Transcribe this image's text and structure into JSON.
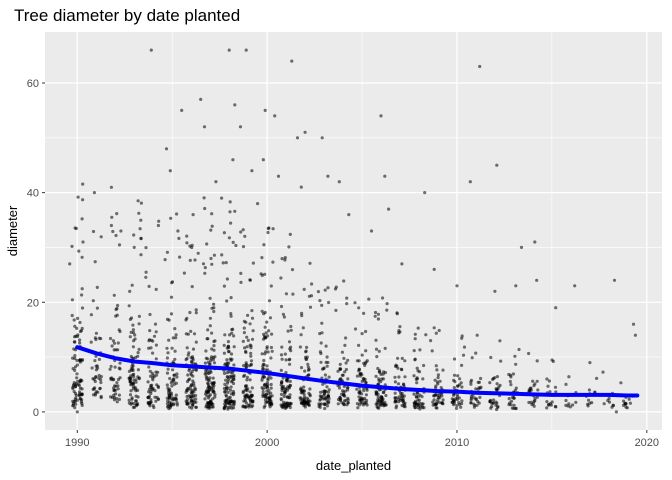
{
  "chart_data": {
    "type": "scatter",
    "title": "Tree diameter by date planted",
    "xlabel": "date_planted",
    "ylabel": "diameter",
    "xlim": [
      1988.3,
      2020.8
    ],
    "ylim": [
      -3.3,
      69.3
    ],
    "x_ticks": [
      {
        "value": 1990,
        "label": "1990"
      },
      {
        "value": 2000,
        "label": "2000"
      },
      {
        "value": 2010,
        "label": "2010"
      },
      {
        "value": 2020,
        "label": "2020"
      }
    ],
    "y_ticks": [
      {
        "value": 0,
        "label": "0"
      },
      {
        "value": 20,
        "label": "20"
      },
      {
        "value": 40,
        "label": "40"
      },
      {
        "value": 60,
        "label": "60"
      }
    ],
    "grid": true,
    "background": "#ebebeb",
    "point_color": "#000000",
    "point_opacity": 0.55,
    "smooth_color": "#0000ff",
    "year_clusters": [
      {
        "year": 1990,
        "low": 1,
        "high": 26,
        "density": 90
      },
      {
        "year": 1991,
        "low": 3,
        "high": 22,
        "density": 40
      },
      {
        "year": 1992,
        "low": 2,
        "high": 26,
        "density": 50
      },
      {
        "year": 1993,
        "low": 1,
        "high": 28,
        "density": 80
      },
      {
        "year": 1994,
        "low": 1,
        "high": 22,
        "density": 60
      },
      {
        "year": 1995,
        "low": 1,
        "high": 23,
        "density": 75
      },
      {
        "year": 1996,
        "low": 1,
        "high": 22,
        "density": 90
      },
      {
        "year": 1997,
        "low": 1,
        "high": 25,
        "density": 110
      },
      {
        "year": 1998,
        "low": 1,
        "high": 24,
        "density": 110
      },
      {
        "year": 1999,
        "low": 1,
        "high": 21,
        "density": 85
      },
      {
        "year": 2000,
        "low": 1,
        "high": 22,
        "density": 95
      },
      {
        "year": 2001,
        "low": 1,
        "high": 21,
        "density": 85
      },
      {
        "year": 2002,
        "low": 1,
        "high": 17,
        "density": 70
      },
      {
        "year": 2003,
        "low": 1,
        "high": 16,
        "density": 60
      },
      {
        "year": 2004,
        "low": 1,
        "high": 15,
        "density": 55
      },
      {
        "year": 2005,
        "low": 1,
        "high": 14,
        "density": 60
      },
      {
        "year": 2006,
        "low": 1,
        "high": 13,
        "density": 70
      },
      {
        "year": 2007,
        "low": 1,
        "high": 12,
        "density": 55
      },
      {
        "year": 2008,
        "low": 1,
        "high": 11,
        "density": 50
      },
      {
        "year": 2009,
        "low": 1,
        "high": 10,
        "density": 45
      },
      {
        "year": 2010,
        "low": 1,
        "high": 10,
        "density": 40
      },
      {
        "year": 2011,
        "low": 1,
        "high": 9,
        "density": 30
      },
      {
        "year": 2012,
        "low": 1,
        "high": 9,
        "density": 30
      },
      {
        "year": 2013,
        "low": 1,
        "high": 8,
        "density": 25
      },
      {
        "year": 2014,
        "low": 1,
        "high": 8,
        "density": 22
      },
      {
        "year": 2015,
        "low": 1,
        "high": 7,
        "density": 18
      },
      {
        "year": 2016,
        "low": 1,
        "high": 6,
        "density": 12
      },
      {
        "year": 2017,
        "low": 1,
        "high": 5,
        "density": 10
      },
      {
        "year": 2018,
        "low": 1,
        "high": 5,
        "density": 8
      },
      {
        "year": 2019,
        "low": 1,
        "high": 5,
        "density": 12
      }
    ],
    "outliers": [
      {
        "x": 1990.0,
        "y": 0
      },
      {
        "x": 1990.3,
        "y": 31
      },
      {
        "x": 1990.9,
        "y": 40
      },
      {
        "x": 1991.8,
        "y": 34
      },
      {
        "x": 1992.3,
        "y": 33
      },
      {
        "x": 1993.0,
        "y": 30
      },
      {
        "x": 1993.9,
        "y": 66
      },
      {
        "x": 1994.7,
        "y": 48
      },
      {
        "x": 1994.9,
        "y": 44
      },
      {
        "x": 1995.3,
        "y": 33
      },
      {
        "x": 1995.5,
        "y": 55
      },
      {
        "x": 1996.5,
        "y": 57
      },
      {
        "x": 1996.7,
        "y": 52
      },
      {
        "x": 1996.1,
        "y": 36
      },
      {
        "x": 1997.3,
        "y": 42
      },
      {
        "x": 1997.6,
        "y": 39
      },
      {
        "x": 1998.0,
        "y": 66
      },
      {
        "x": 1998.3,
        "y": 56
      },
      {
        "x": 1998.6,
        "y": 52
      },
      {
        "x": 1998.2,
        "y": 46
      },
      {
        "x": 1998.9,
        "y": 66
      },
      {
        "x": 1999.2,
        "y": 44
      },
      {
        "x": 1999.5,
        "y": 38
      },
      {
        "x": 1999.9,
        "y": 55
      },
      {
        "x": 1999.8,
        "y": 46
      },
      {
        "x": 2000.4,
        "y": 54
      },
      {
        "x": 2000.6,
        "y": 43
      },
      {
        "x": 2001.3,
        "y": 64
      },
      {
        "x": 2001.6,
        "y": 50
      },
      {
        "x": 2002.0,
        "y": 51
      },
      {
        "x": 2001.8,
        "y": 41
      },
      {
        "x": 2002.9,
        "y": 50
      },
      {
        "x": 2003.2,
        "y": 43
      },
      {
        "x": 2003.8,
        "y": 42
      },
      {
        "x": 2004.3,
        "y": 36
      },
      {
        "x": 2005.5,
        "y": 33
      },
      {
        "x": 2006.0,
        "y": 54
      },
      {
        "x": 2006.2,
        "y": 43
      },
      {
        "x": 2006.4,
        "y": 37
      },
      {
        "x": 2007.1,
        "y": 27
      },
      {
        "x": 2008.3,
        "y": 40
      },
      {
        "x": 2008.8,
        "y": 26
      },
      {
        "x": 2010.0,
        "y": 23
      },
      {
        "x": 2010.7,
        "y": 42
      },
      {
        "x": 2011.2,
        "y": 63
      },
      {
        "x": 2012.1,
        "y": 45
      },
      {
        "x": 2012.0,
        "y": 22
      },
      {
        "x": 2013.1,
        "y": 23
      },
      {
        "x": 2013.4,
        "y": 30
      },
      {
        "x": 2014.1,
        "y": 31
      },
      {
        "x": 2014.2,
        "y": 24
      },
      {
        "x": 2015.2,
        "y": 19
      },
      {
        "x": 2016.2,
        "y": 23
      },
      {
        "x": 2017.0,
        "y": 9
      },
      {
        "x": 2018.3,
        "y": 24
      },
      {
        "x": 2018.4,
        "y": 0
      },
      {
        "x": 2019.3,
        "y": 16
      },
      {
        "x": 2019.4,
        "y": 14
      }
    ],
    "smooth": [
      {
        "x": 1990,
        "y": 11.8
      },
      {
        "x": 1991,
        "y": 10.7
      },
      {
        "x": 1992,
        "y": 9.8
      },
      {
        "x": 1993,
        "y": 9.2
      },
      {
        "x": 1994,
        "y": 8.9
      },
      {
        "x": 1995,
        "y": 8.5
      },
      {
        "x": 1996,
        "y": 8.3
      },
      {
        "x": 1997,
        "y": 8.1
      },
      {
        "x": 1998,
        "y": 7.9
      },
      {
        "x": 1999,
        "y": 7.5
      },
      {
        "x": 2000,
        "y": 7.1
      },
      {
        "x": 2001,
        "y": 6.6
      },
      {
        "x": 2002,
        "y": 6.1
      },
      {
        "x": 2003,
        "y": 5.6
      },
      {
        "x": 2004,
        "y": 5.2
      },
      {
        "x": 2005,
        "y": 4.8
      },
      {
        "x": 2006,
        "y": 4.5
      },
      {
        "x": 2007,
        "y": 4.2
      },
      {
        "x": 2008,
        "y": 4.0
      },
      {
        "x": 2009,
        "y": 3.8
      },
      {
        "x": 2010,
        "y": 3.7
      },
      {
        "x": 2011,
        "y": 3.5
      },
      {
        "x": 2012,
        "y": 3.4
      },
      {
        "x": 2013,
        "y": 3.3
      },
      {
        "x": 2014,
        "y": 3.2
      },
      {
        "x": 2015,
        "y": 3.1
      },
      {
        "x": 2016,
        "y": 3.1
      },
      {
        "x": 2017,
        "y": 3.1
      },
      {
        "x": 2018,
        "y": 3.1
      },
      {
        "x": 2019,
        "y": 3.0
      },
      {
        "x": 2019.5,
        "y": 3.0
      }
    ]
  }
}
